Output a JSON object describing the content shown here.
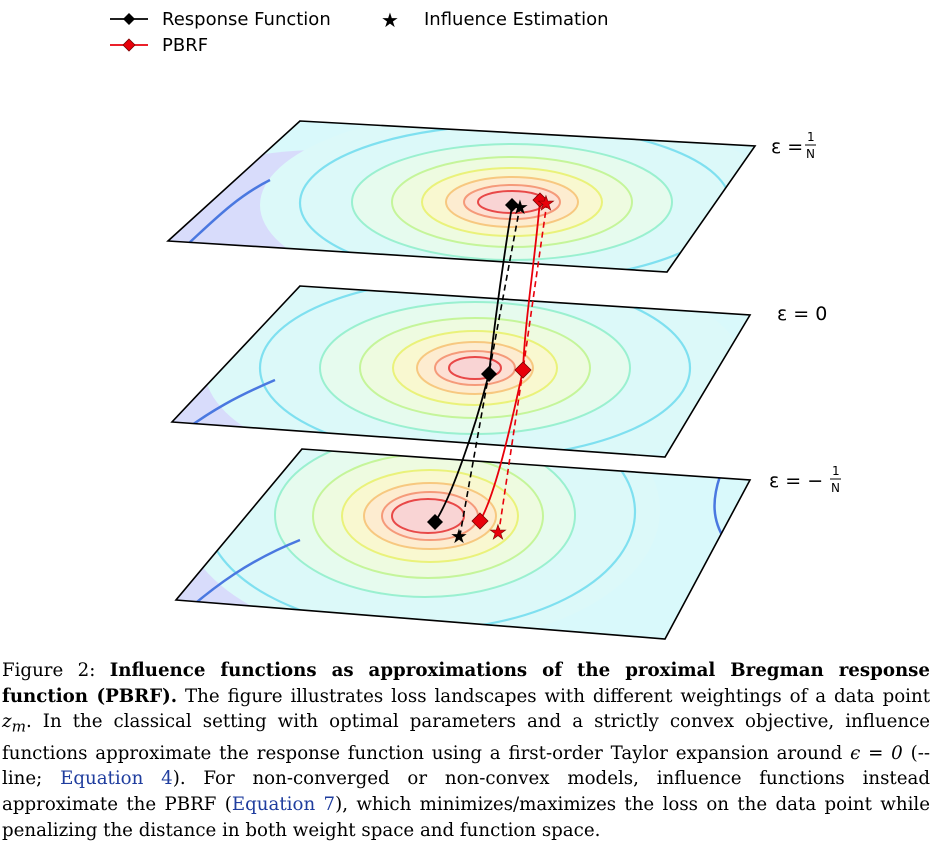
{
  "legend": {
    "response_function": "Response Function",
    "influence_estimation": "Influence Estimation",
    "pbrf": "PBRF"
  },
  "planes": [
    {
      "label_prefix": "ε = ",
      "frac_num": "1",
      "frac_den": "N"
    },
    {
      "label": "ε = 0"
    },
    {
      "label_prefix": "ε = −",
      "frac_num": "1",
      "frac_den": "N"
    }
  ],
  "colors": {
    "response": "#000000",
    "pbrf": "#e8000b",
    "plane_edge": "#000000"
  },
  "caption": {
    "fig_label": "Figure 2:",
    "title": "Influence functions as approximations of the proximal Bregman response function (PBRF).",
    "text_1": "The figure illustrates loss landscapes with different weightings of a data point",
    "zm": "z",
    "zm_sub": "m",
    "text_2": ". In the classical setting with optimal parameters and a strictly convex objective, influence functions approximate the response function using a first-order Taylor expansion around",
    "eps_eq": "ϵ = 0",
    "text_3": "(-- line;",
    "ref_1": "Equation 4",
    "text_4": "). For non-converged or non-convex models, influence functions instead approximate the PBRF (",
    "ref_2": "Equation 7",
    "text_5": "), which minimizes/maximizes the loss on the data point while penalizing the distance in both weight space and function space."
  }
}
